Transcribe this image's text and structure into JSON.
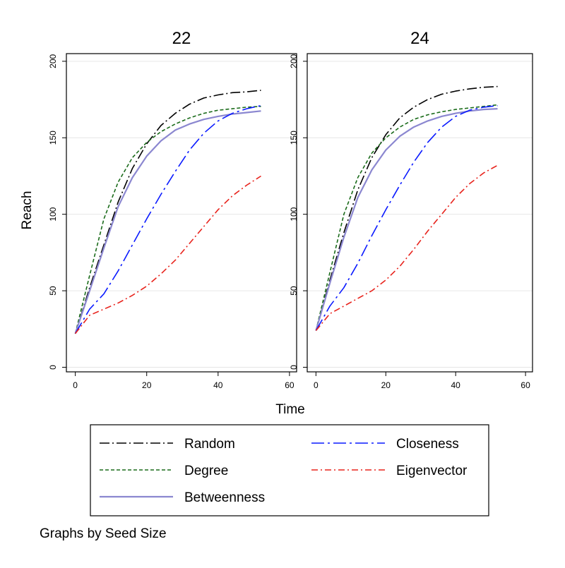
{
  "chart_data": [
    {
      "type": "line",
      "title": "22",
      "xlabel": "Time",
      "ylabel": "Reach",
      "xlim": [
        -2.5,
        62
      ],
      "ylim": [
        -3,
        205
      ],
      "xticks": [
        0,
        20,
        40,
        60
      ],
      "yticks": [
        0,
        50,
        100,
        150,
        200
      ],
      "grid": true,
      "series": [
        {
          "name": "Random",
          "color": "#000000",
          "dash": "14,4,2,4",
          "x": [
            0,
            4,
            8,
            12,
            16,
            20,
            24,
            28,
            32,
            36,
            40,
            44,
            48,
            52
          ],
          "y": [
            22,
            52,
            80,
            108,
            130,
            146,
            158,
            166,
            172,
            176,
            178,
            179.5,
            180,
            181
          ]
        },
        {
          "name": "Degree",
          "color": "#1a6b1a",
          "dash": "5,3",
          "x": [
            0,
            4,
            8,
            12,
            16,
            20,
            24,
            28,
            32,
            36,
            40,
            44,
            48,
            52
          ],
          "y": [
            22,
            60,
            97,
            121,
            137,
            147,
            154,
            159,
            163,
            166,
            168,
            169,
            170,
            170.5
          ]
        },
        {
          "name": "Betweenness",
          "color": "#8b87d0",
          "dash": "",
          "x": [
            0,
            4,
            8,
            12,
            16,
            20,
            24,
            28,
            32,
            36,
            40,
            44,
            48,
            52
          ],
          "y": [
            22,
            50,
            78,
            105,
            124,
            138,
            148,
            155,
            159,
            162,
            164,
            165.5,
            166.5,
            167.5
          ]
        },
        {
          "name": "Closeness",
          "color": "#0a1aff",
          "dash": "18,5,3,5",
          "x": [
            0,
            4,
            8,
            12,
            16,
            20,
            24,
            28,
            32,
            36,
            40,
            44,
            48,
            52
          ],
          "y": [
            22,
            38,
            48,
            63,
            80,
            97,
            113,
            128,
            142,
            153,
            161,
            166,
            169,
            171
          ]
        },
        {
          "name": "Eigenvector",
          "color": "#e8231c",
          "dash": "9,4,2,4",
          "x": [
            0,
            4,
            8,
            12,
            16,
            20,
            24,
            28,
            32,
            36,
            40,
            44,
            48,
            52
          ],
          "y": [
            22,
            34,
            38,
            42,
            47,
            53,
            61,
            70,
            81,
            92,
            103,
            112,
            119,
            125
          ]
        }
      ]
    },
    {
      "type": "line",
      "title": "24",
      "xlabel": "Time",
      "ylabel": "Reach",
      "xlim": [
        -2.5,
        62
      ],
      "ylim": [
        -3,
        205
      ],
      "xticks": [
        0,
        20,
        40,
        60
      ],
      "yticks": [
        0,
        50,
        100,
        150,
        200
      ],
      "grid": true,
      "series": [
        {
          "name": "Random",
          "color": "#000000",
          "dash": "14,4,2,4",
          "x": [
            0,
            4,
            8,
            12,
            16,
            20,
            24,
            28,
            32,
            36,
            40,
            44,
            48,
            52
          ],
          "y": [
            24,
            57,
            88,
            116,
            137,
            152,
            163,
            170,
            175,
            178.5,
            180.5,
            182,
            183,
            183.5
          ]
        },
        {
          "name": "Degree",
          "color": "#1a6b1a",
          "dash": "5,3",
          "x": [
            0,
            4,
            8,
            12,
            16,
            20,
            24,
            28,
            32,
            36,
            40,
            44,
            48,
            52
          ],
          "y": [
            24,
            62,
            100,
            124,
            140,
            150,
            157,
            162,
            165,
            167,
            168.5,
            169.5,
            170.5,
            171.5
          ]
        },
        {
          "name": "Betweenness",
          "color": "#8b87d0",
          "dash": "",
          "x": [
            0,
            4,
            8,
            12,
            16,
            20,
            24,
            28,
            32,
            36,
            40,
            44,
            48,
            52
          ],
          "y": [
            24,
            55,
            85,
            111,
            129,
            142,
            151,
            157,
            161,
            164,
            166,
            167.5,
            168.5,
            169
          ]
        },
        {
          "name": "Closeness",
          "color": "#0a1aff",
          "dash": "18,5,3,5",
          "x": [
            0,
            4,
            8,
            12,
            16,
            20,
            24,
            28,
            32,
            36,
            40,
            44,
            48,
            52
          ],
          "y": [
            24,
            40,
            52,
            68,
            86,
            103,
            119,
            134,
            147,
            157,
            164,
            168,
            170,
            171
          ]
        },
        {
          "name": "Eigenvector",
          "color": "#e8231c",
          "dash": "9,4,2,4",
          "x": [
            0,
            4,
            8,
            12,
            16,
            20,
            24,
            28,
            32,
            36,
            40,
            44,
            48,
            52
          ],
          "y": [
            24,
            35,
            40,
            45,
            50,
            57,
            66,
            77,
            89,
            100,
            111,
            120,
            127,
            132
          ]
        }
      ]
    }
  ],
  "shared": {
    "xlabel": "Time",
    "ylabel": "Reach",
    "note": "Graphs by Seed Size"
  },
  "legend": {
    "placement": "bottom",
    "items": [
      {
        "label": "Random",
        "color": "#000000",
        "dash": "14,4,2,4"
      },
      {
        "label": "Closeness",
        "color": "#0a1aff",
        "dash": "18,5,3,5"
      },
      {
        "label": "Degree",
        "color": "#1a6b1a",
        "dash": "5,3"
      },
      {
        "label": "Eigenvector",
        "color": "#e8231c",
        "dash": "9,4,2,4"
      },
      {
        "label": "Betweenness",
        "color": "#8b87d0",
        "dash": ""
      }
    ]
  }
}
